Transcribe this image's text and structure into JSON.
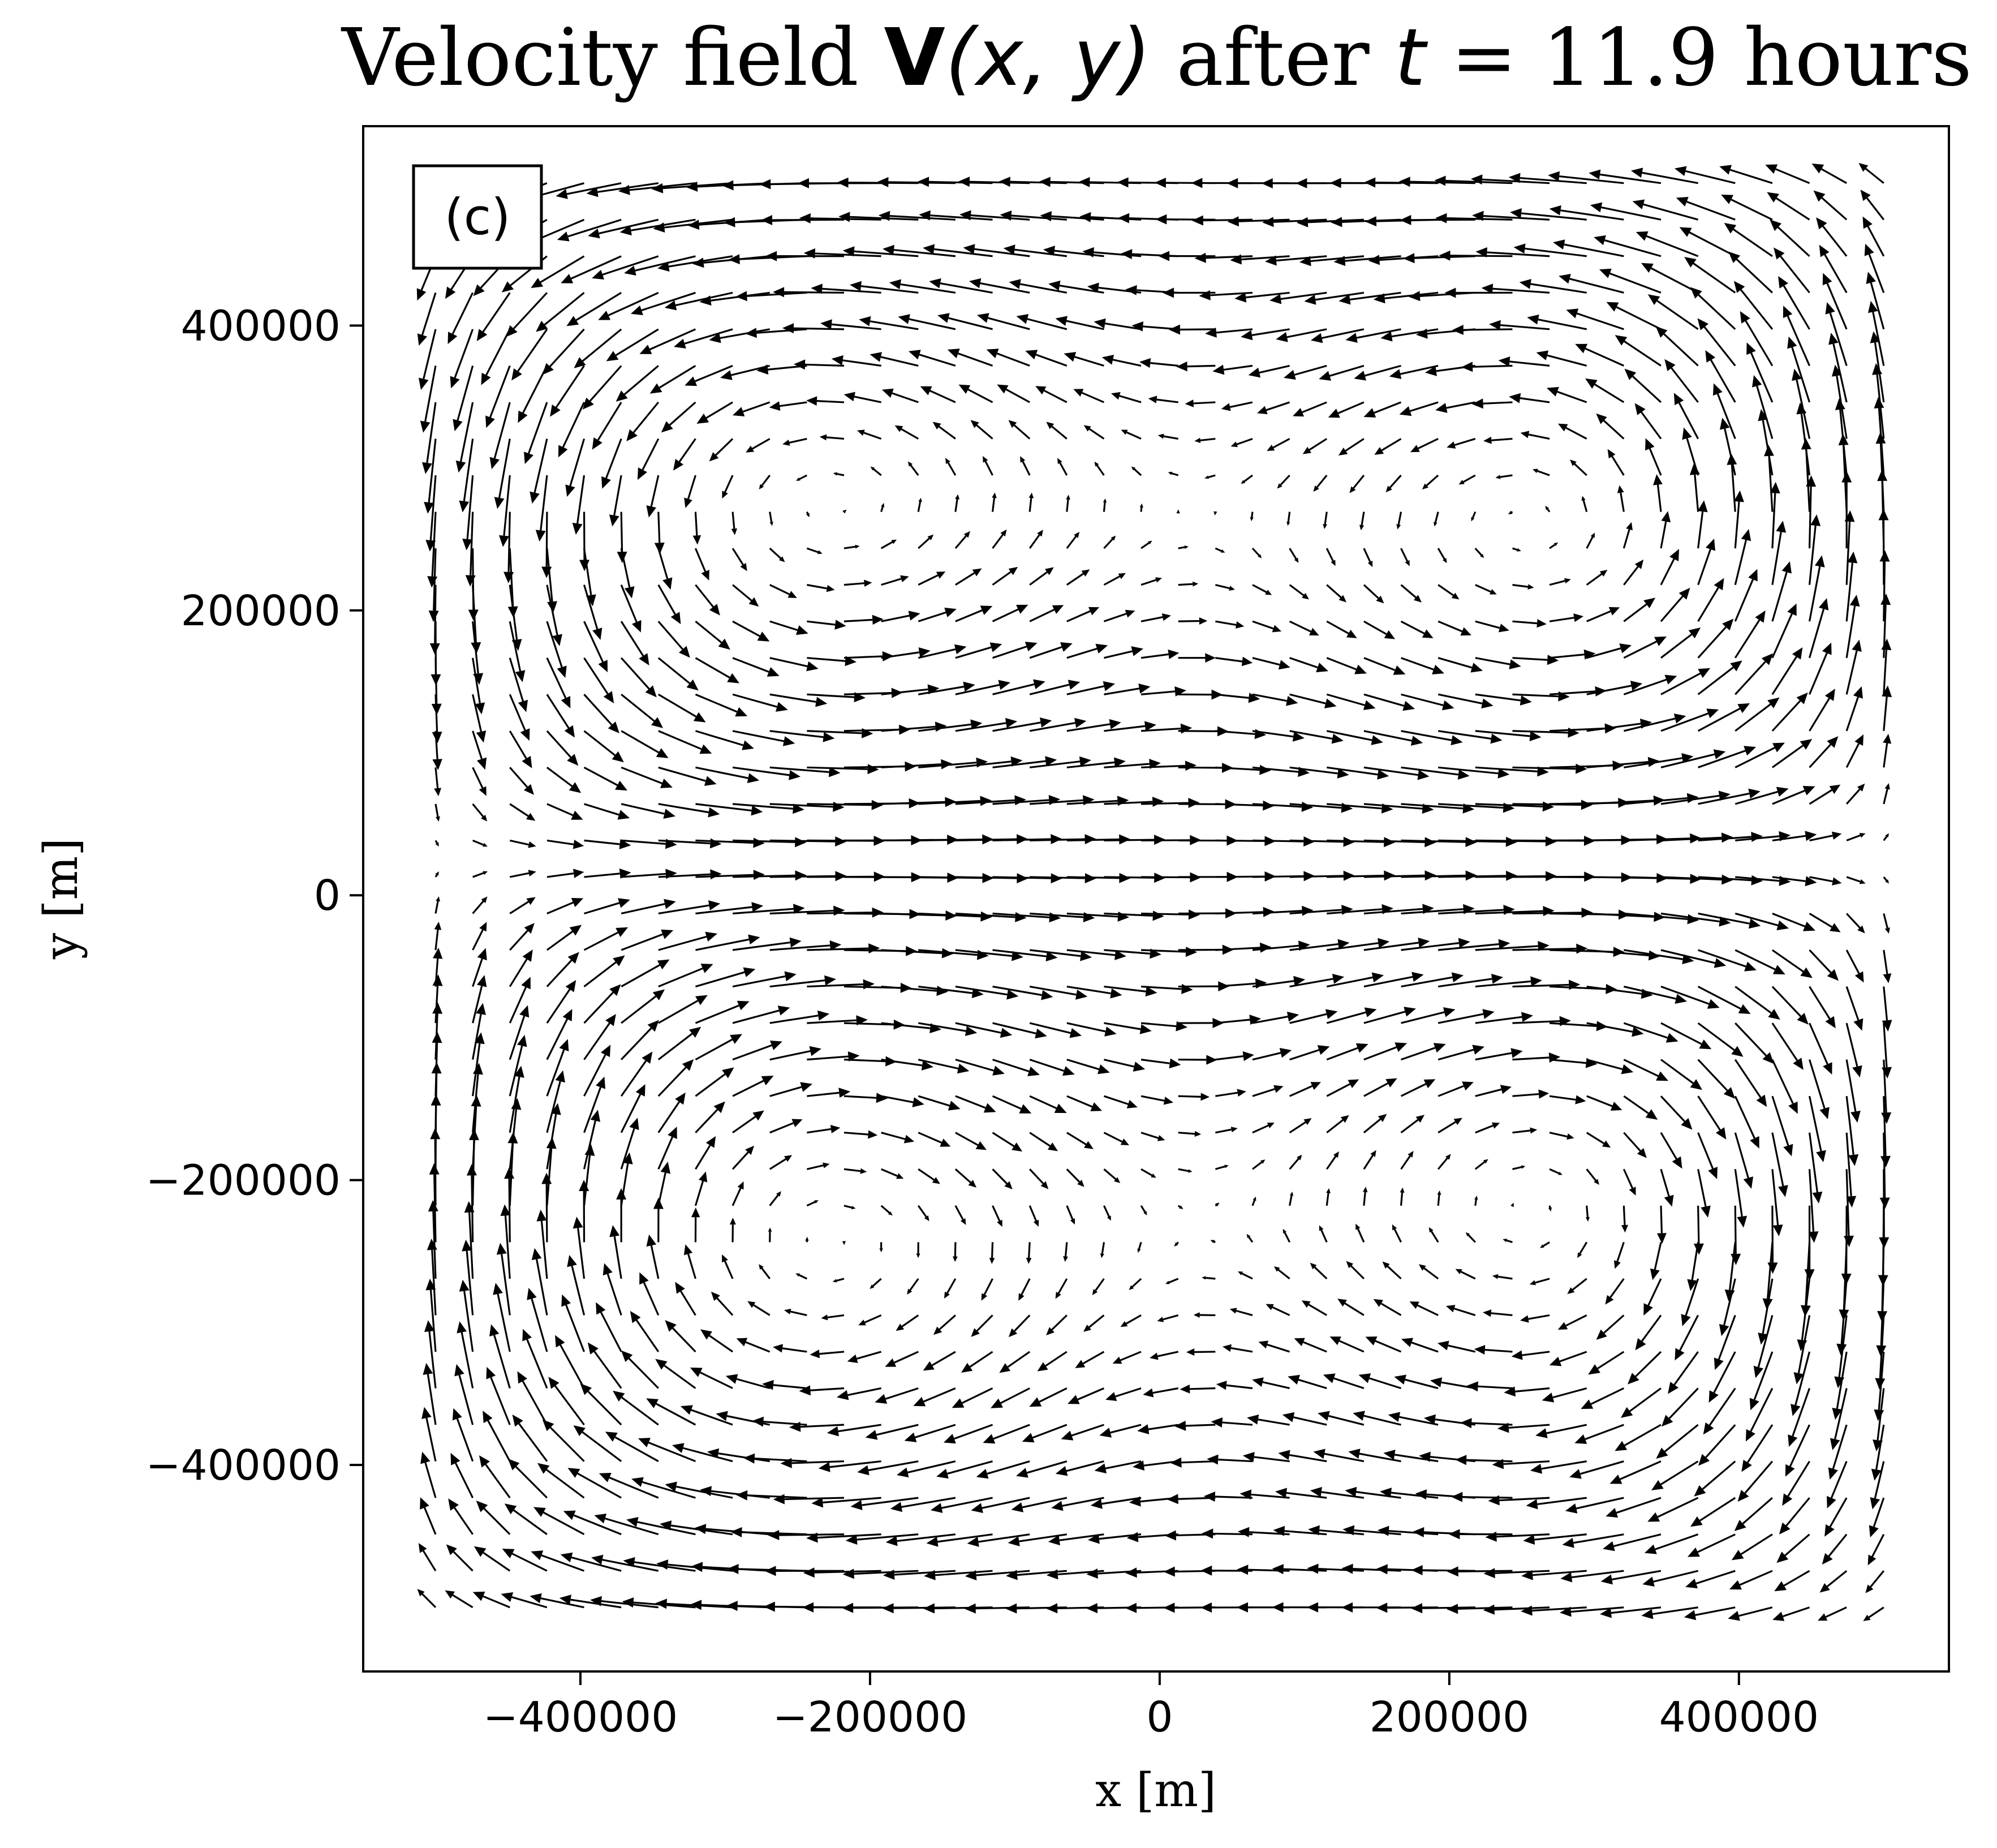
{
  "chart_data": {
    "type": "quiver",
    "title": {
      "prefix": "Velocity field ",
      "symbol": "V",
      "args": "(x, y)",
      "middle": " after ",
      "var": "t",
      "eq": " = ",
      "value": "11.9",
      "unit": " hours"
    },
    "panel_label": "(c)",
    "xlabel": "x [m]",
    "ylabel": "y [m]",
    "xlim": [
      -550000,
      545000
    ],
    "ylim": [
      -545000,
      540000
    ],
    "x_ticks": [
      -400000,
      -200000,
      0,
      200000,
      400000
    ],
    "x_tick_labels": [
      "−400000",
      "−200000",
      "0",
      "200000",
      "400000"
    ],
    "y_ticks": [
      -400000,
      -200000,
      0,
      200000,
      400000
    ],
    "y_tick_labels": [
      "−400000",
      "−200000",
      "0",
      "200000",
      "400000"
    ],
    "grid": false,
    "grid_spec": {
      "n": 40,
      "min": -500000,
      "max": 500000
    },
    "vortices": [
      {
        "x": -250000,
        "y": 300000,
        "sense": "ccw"
      },
      {
        "x": 300000,
        "y": 250000,
        "sense": "ccw"
      },
      {
        "x": -250000,
        "y": -250000,
        "sense": "cw"
      },
      {
        "x": 300000,
        "y": -200000,
        "sense": "cw"
      }
    ],
    "arrow_color": "#000000"
  }
}
